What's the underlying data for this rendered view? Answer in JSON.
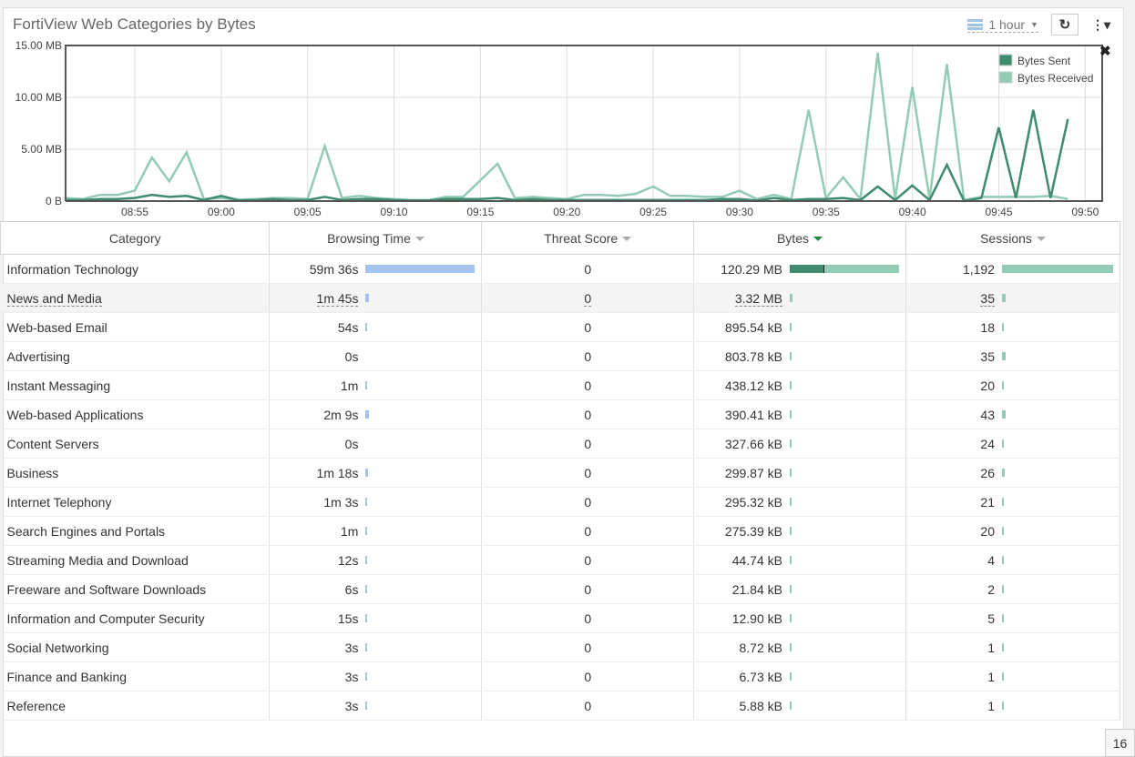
{
  "widget": {
    "title": "FortiView Web Categories by Bytes",
    "time_range": "1 hour",
    "row_count": "16"
  },
  "chart_data": {
    "type": "line",
    "title": "",
    "xlabel": "",
    "ylabel": "",
    "x_ticks": [
      "08:55",
      "09:00",
      "09:05",
      "09:10",
      "09:15",
      "09:20",
      "09:25",
      "09:30",
      "09:35",
      "09:40",
      "09:45",
      "09:50"
    ],
    "y_ticks": [
      "0 B",
      "5.00 MB",
      "10.00 MB",
      "15.00 MB"
    ],
    "ylim_mb": [
      0,
      15
    ],
    "x_start": "08:51",
    "x_step_minutes": 1,
    "grid": true,
    "legend": "top-right",
    "series": [
      {
        "name": "Bytes Sent",
        "color": "#3f8b6d",
        "values_mb": [
          0.1,
          0.1,
          0.2,
          0.2,
          0.3,
          0.6,
          0.4,
          0.5,
          0.1,
          0.5,
          0.1,
          0.1,
          0.2,
          0.1,
          0.1,
          0.4,
          0.1,
          0.2,
          0.2,
          0.1,
          0.05,
          0.05,
          0.2,
          0.2,
          0.2,
          0.3,
          0.1,
          0.2,
          0.1,
          0.1,
          0.1,
          0.1,
          0.1,
          0.1,
          0.1,
          0.1,
          0.1,
          0.1,
          0.2,
          0.2,
          0.05,
          0.3,
          0.1,
          0.2,
          0.2,
          0.3,
          0.1,
          1.4,
          0.1,
          1.5,
          0.1,
          3.5,
          0,
          0.3,
          7.1,
          0.3,
          8.8,
          0.3,
          7.9
        ]
      },
      {
        "name": "Bytes Received",
        "color": "#93cbb4",
        "values_mb": [
          0.3,
          0.2,
          0.6,
          0.6,
          1.0,
          4.2,
          1.9,
          4.7,
          0.2,
          0.3,
          0.1,
          0.2,
          0.3,
          0.3,
          0.2,
          5.3,
          0.3,
          0.5,
          0.3,
          0.2,
          0.1,
          0.1,
          0.4,
          0.4,
          2.0,
          3.6,
          0.3,
          0.4,
          0.3,
          0.2,
          0.6,
          0.6,
          0.5,
          0.7,
          1.4,
          0.5,
          0.5,
          0.4,
          0.4,
          1.0,
          0.2,
          0.6,
          0.2,
          8.8,
          0.3,
          2.3,
          0.2,
          14.3,
          0.2,
          11.0,
          0.2,
          13.2,
          0.1,
          0.4,
          0.4,
          0.4,
          0.4,
          0.5,
          0.2
        ]
      }
    ]
  },
  "table": {
    "headers": [
      "Category",
      "Browsing Time",
      "Threat Score",
      "Bytes",
      "Sessions"
    ],
    "sorted_by": "Bytes",
    "bar_colors": {
      "browsing": "#a4c4f0",
      "bytes_sent": "#428b6f",
      "bytes_received": "#93cbb4",
      "sessions": "#93cbb4"
    },
    "rows": [
      {
        "category": "Information Technology",
        "browsing": "59m 36s",
        "threat": "0",
        "bytes": "120.29 MB",
        "bytes_sent_share": 0.31,
        "sessions": "1,192"
      },
      {
        "category": "News and Media",
        "browsing": "1m 45s",
        "threat": "0",
        "bytes": "3.32 MB",
        "sessions": "35"
      },
      {
        "category": "Web-based Email",
        "browsing": "54s",
        "threat": "0",
        "bytes": "895.54 kB",
        "sessions": "18"
      },
      {
        "category": "Advertising",
        "browsing": "0s",
        "threat": "0",
        "bytes": "803.78 kB",
        "sessions": "35"
      },
      {
        "category": "Instant Messaging",
        "browsing": "1m",
        "threat": "0",
        "bytes": "438.12 kB",
        "sessions": "20"
      },
      {
        "category": "Web-based Applications",
        "browsing": "2m 9s",
        "threat": "0",
        "bytes": "390.41 kB",
        "sessions": "43"
      },
      {
        "category": "Content Servers",
        "browsing": "0s",
        "threat": "0",
        "bytes": "327.66 kB",
        "sessions": "24"
      },
      {
        "category": "Business",
        "browsing": "1m 18s",
        "threat": "0",
        "bytes": "299.87 kB",
        "sessions": "26"
      },
      {
        "category": "Internet Telephony",
        "browsing": "1m 3s",
        "threat": "0",
        "bytes": "295.32 kB",
        "sessions": "21"
      },
      {
        "category": "Search Engines and Portals",
        "browsing": "1m",
        "threat": "0",
        "bytes": "275.39 kB",
        "sessions": "20"
      },
      {
        "category": "Streaming Media and Download",
        "browsing": "12s",
        "threat": "0",
        "bytes": "44.74 kB",
        "sessions": "4"
      },
      {
        "category": "Freeware and Software Downloads",
        "browsing": "6s",
        "threat": "0",
        "bytes": "21.84 kB",
        "sessions": "2"
      },
      {
        "category": "Information and Computer Security",
        "browsing": "15s",
        "threat": "0",
        "bytes": "12.90 kB",
        "sessions": "5"
      },
      {
        "category": "Social Networking",
        "browsing": "3s",
        "threat": "0",
        "bytes": "8.72 kB",
        "sessions": "1"
      },
      {
        "category": "Finance and Banking",
        "browsing": "3s",
        "threat": "0",
        "bytes": "6.73 kB",
        "sessions": "1"
      },
      {
        "category": "Reference",
        "browsing": "3s",
        "threat": "0",
        "bytes": "5.88 kB",
        "sessions": "1"
      }
    ]
  }
}
